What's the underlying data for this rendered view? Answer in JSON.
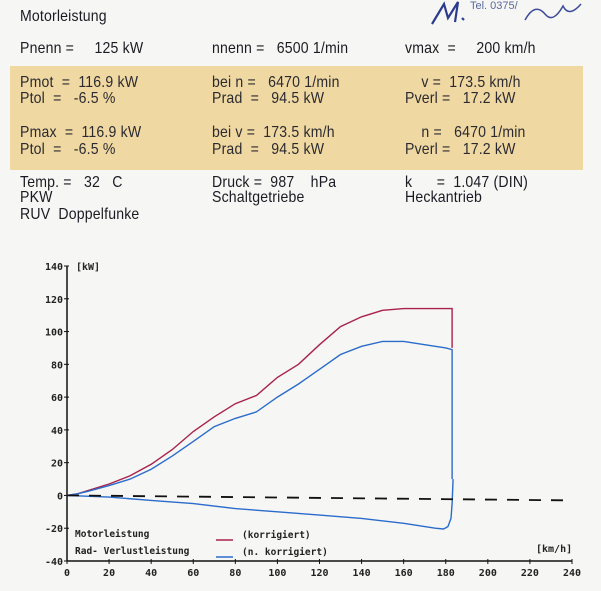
{
  "header": {
    "title": "Motorleistung",
    "stamp_text": "M. Tel. 0375/...",
    "tel": "Tel. 0375/"
  },
  "nominal": {
    "pnenn": "Pnenn =     125 kW",
    "nnenn": "nnenn =   6500 1/min",
    "vmax": "vmax  =     200 km/h"
  },
  "highlight": {
    "row1": [
      "Pmot  =  116.9 kW",
      "bei n =   6470 1/min",
      "    v =  173.5 km/h"
    ],
    "row2": [
      "Ptol  =   -6.5 %",
      "Prad  =   94.5 kW",
      "Pverl =   17.2 kW"
    ],
    "row3": [
      "Pmax  =  116.9 kW",
      "bei v =  173.5 km/h",
      "    n =   6470 1/min"
    ],
    "row4": [
      "Ptol  =   -6.5 %",
      "Prad  =   94.5 kW",
      "Pverl =   17.2 kW"
    ]
  },
  "conditions": {
    "temp": "Temp. =   32   C",
    "druck": "Druck =  987    hPa",
    "k": "k      =  1.047 (DIN)",
    "vehicle": "PKW",
    "gearbox": "Schaltgetriebe",
    "drive": "Heckantrieb",
    "ignition": "RUV  Doppelfunke"
  },
  "colors": {
    "motor": "#a8224a",
    "rad": "#2a6ccc",
    "highlight": "#f0d8a2"
  },
  "chart_data": {
    "type": "line",
    "ylabel": "[kW]",
    "xlabel": "[km/h]",
    "xlim": [
      0,
      240
    ],
    "ylim": [
      -40,
      140
    ],
    "xticks": [
      0,
      20,
      40,
      60,
      80,
      100,
      120,
      140,
      160,
      180,
      200,
      220,
      240
    ],
    "yticks": [
      -40,
      -20,
      0,
      20,
      40,
      60,
      80,
      100,
      120,
      140
    ],
    "legend": {
      "labels": [
        "Motorleistung",
        "Rad- Verlustleistung"
      ],
      "keys": [
        "(korrigiert)",
        "(n. korrigiert)"
      ],
      "placement": "bottom-left"
    },
    "series": [
      {
        "name": "Motorleistung (korrigiert)",
        "color": "#a8224a",
        "x": [
          0,
          5,
          10,
          20,
          30,
          40,
          50,
          60,
          70,
          80,
          90,
          100,
          110,
          120,
          130,
          140,
          150,
          160,
          170,
          180,
          183,
          183
        ],
        "y": [
          0,
          1,
          3,
          7,
          12,
          19,
          28,
          39,
          48,
          56,
          61,
          72,
          80,
          92,
          103,
          109,
          113,
          114,
          114,
          114,
          114,
          90
        ]
      },
      {
        "name": "Radleistung (n. korrigiert)",
        "color": "#2a6ccc",
        "x": [
          0,
          5,
          10,
          20,
          30,
          40,
          50,
          60,
          70,
          80,
          90,
          100,
          110,
          120,
          130,
          140,
          150,
          160,
          170,
          180,
          183,
          183
        ],
        "y": [
          0,
          1,
          2.5,
          6,
          10,
          16,
          24,
          33,
          42,
          47,
          51,
          60,
          68,
          77,
          86,
          91,
          94,
          94,
          92,
          90,
          89,
          10
        ]
      },
      {
        "name": "Verlustleistung",
        "color": "#2a6ccc",
        "x": [
          0,
          20,
          40,
          60,
          80,
          100,
          120,
          140,
          160,
          175,
          179,
          181,
          182.5,
          183,
          183.5
        ],
        "y": [
          0,
          -1,
          -3,
          -5,
          -8,
          -10,
          -12,
          -14,
          -17,
          -20,
          -20.5,
          -19,
          -14,
          -5,
          10
        ]
      },
      {
        "name": "Nulllinie",
        "color": "#111",
        "dashed": true,
        "x": [
          0,
          240
        ],
        "y": [
          0,
          -3
        ]
      }
    ]
  }
}
